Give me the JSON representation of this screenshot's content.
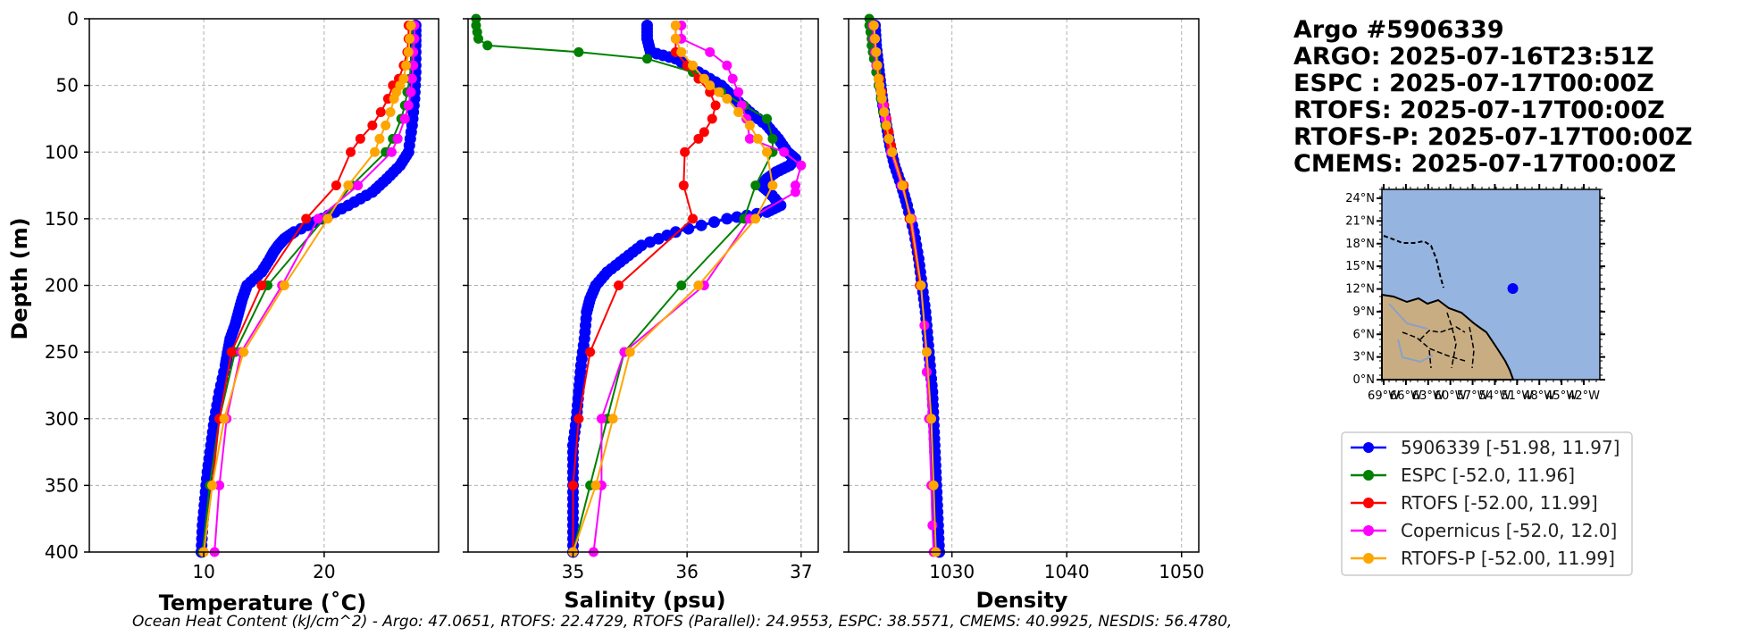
{
  "title": {
    "lines": [
      "Argo #5906339",
      "ARGO: 2025-07-16T23:51Z",
      "ESPC : 2025-07-17T00:00Z",
      "RTOFS: 2025-07-17T00:00Z",
      "RTOFS-P: 2025-07-17T00:00Z",
      "CMEMS: 2025-07-17T00:00Z"
    ]
  },
  "footer": {
    "ohc_text": "Ocean Heat Content (kJ/cm^2) - Argo: 47.0651,  RTOFS: 22.4729,  RTOFS (Parallel): 24.9553,  ESPC: 38.5571,  CMEMS: 40.9925,  NESDIS: 56.4780,"
  },
  "colors": {
    "argo": "#0000ff",
    "espc": "#008000",
    "rtofs": "#ff0000",
    "copernicus": "#ff00ff",
    "rtofs_p": "#ffa500",
    "ocean": "#96b4e0",
    "land": "#c9ad82"
  },
  "legend": [
    {
      "key": "argo",
      "label": "5906339 [-51.98, 11.97]"
    },
    {
      "key": "espc",
      "label": "ESPC [-52.0, 11.96]"
    },
    {
      "key": "rtofs",
      "label": "RTOFS [-52.00, 11.99]"
    },
    {
      "key": "copernicus",
      "label": "Copernicus [-52.0, 12.0]"
    },
    {
      "key": "rtofs_p",
      "label": "RTOFS-P [-52.00, 11.99]"
    }
  ],
  "chart_data": [
    {
      "type": "line",
      "title": "",
      "xlabel": "Temperature (˚C)",
      "ylabel": "Depth (m)",
      "xlim": [
        0.5,
        29.5
      ],
      "ylim": [
        400,
        0
      ],
      "xticks": [
        10,
        20
      ],
      "yticks": [
        0,
        50,
        100,
        150,
        200,
        250,
        300,
        350,
        400
      ],
      "grid": true,
      "series": [
        {
          "key": "argo",
          "dense": true,
          "name": "5906339",
          "depth": [
            5,
            20,
            40,
            60,
            80,
            100,
            110,
            120,
            130,
            140,
            150,
            160,
            165,
            170,
            175,
            180,
            190,
            200,
            210,
            220,
            230,
            240,
            250,
            260,
            280,
            300,
            320,
            340,
            360,
            380,
            400
          ],
          "values": [
            27.6,
            27.6,
            27.6,
            27.5,
            27.3,
            27.0,
            26.3,
            25.2,
            24.0,
            22.0,
            19.8,
            17.5,
            16.7,
            16.2,
            15.8,
            15.5,
            14.8,
            13.6,
            13.2,
            12.9,
            12.6,
            12.2,
            12.0,
            11.8,
            11.3,
            10.9,
            10.6,
            10.3,
            10.1,
            9.9,
            9.8
          ]
        },
        {
          "key": "espc",
          "name": "ESPC",
          "depth": [
            5,
            15,
            25,
            35,
            45,
            55,
            65,
            75,
            90,
            100,
            125,
            150,
            200,
            250,
            300,
            350,
            400
          ],
          "values": [
            27.3,
            27.3,
            27.3,
            27.2,
            27.1,
            26.9,
            26.7,
            26.4,
            25.7,
            25.1,
            22.3,
            20.0,
            15.3,
            12.6,
            11.3,
            10.5,
            9.9
          ]
        },
        {
          "key": "rtofs",
          "name": "RTOFS",
          "depth": [
            5,
            15,
            25,
            35,
            45,
            50,
            60,
            70,
            80,
            90,
            100,
            125,
            150,
            200,
            250,
            300,
            350,
            400
          ],
          "values": [
            27.0,
            27.0,
            26.9,
            26.6,
            26.2,
            25.7,
            25.3,
            24.7,
            24.0,
            23.0,
            22.2,
            21.0,
            18.5,
            14.8,
            12.3,
            11.3,
            10.7,
            10.0
          ]
        },
        {
          "key": "copernicus",
          "name": "Copernicus",
          "depth": [
            5,
            15,
            25,
            35,
            45,
            55,
            65,
            75,
            90,
            100,
            125,
            150,
            200,
            250,
            300,
            350,
            400
          ],
          "values": [
            27.5,
            27.5,
            27.4,
            27.4,
            27.3,
            27.2,
            27.0,
            26.7,
            26.1,
            25.6,
            22.8,
            19.5,
            16.5,
            13.1,
            11.9,
            11.3,
            10.9
          ]
        },
        {
          "key": "rtofs_p",
          "name": "RTOFS-P",
          "depth": [
            5,
            15,
            25,
            35,
            45,
            50,
            55,
            60,
            70,
            80,
            90,
            100,
            125,
            150,
            200,
            250,
            300,
            350,
            400
          ],
          "values": [
            27.2,
            27.1,
            27.0,
            26.8,
            26.6,
            26.3,
            26.0,
            25.8,
            25.5,
            25.1,
            24.6,
            24.2,
            22.0,
            20.3,
            16.7,
            13.3,
            11.7,
            10.7,
            10.0
          ]
        }
      ]
    },
    {
      "type": "line",
      "title": "",
      "xlabel": "Salinity (psu)",
      "ylabel": "",
      "xlim": [
        34.08,
        37.15
      ],
      "ylim": [
        400,
        0
      ],
      "xticks": [
        35,
        36,
        37
      ],
      "yticks": [
        0,
        50,
        100,
        150,
        200,
        250,
        300,
        350,
        400
      ],
      "grid": true,
      "series": [
        {
          "key": "argo",
          "dense": true,
          "name": "5906339",
          "depth": [
            5,
            15,
            25,
            30,
            40,
            50,
            60,
            70,
            80,
            90,
            100,
            105,
            110,
            115,
            120,
            125,
            130,
            140,
            145,
            150,
            160,
            170,
            180,
            190,
            200,
            210,
            220,
            240,
            260,
            280,
            300,
            320,
            340,
            360,
            380,
            400
          ],
          "values": [
            35.65,
            35.65,
            35.68,
            35.9,
            36.1,
            36.3,
            36.42,
            36.55,
            36.7,
            36.8,
            36.88,
            36.95,
            36.9,
            36.78,
            36.7,
            36.65,
            36.72,
            36.82,
            36.7,
            36.35,
            35.9,
            35.6,
            35.45,
            35.3,
            35.2,
            35.15,
            35.12,
            35.1,
            35.07,
            35.05,
            35.03,
            35.0,
            35.0,
            35.0,
            35.0,
            35.0
          ]
        },
        {
          "key": "espc",
          "name": "ESPC",
          "depth": [
            0,
            5,
            10,
            15,
            20,
            25,
            30,
            40,
            55,
            65,
            75,
            90,
            100,
            125,
            150,
            200,
            250,
            300,
            350,
            400
          ],
          "values": [
            34.15,
            34.15,
            34.16,
            34.17,
            34.25,
            35.05,
            35.65,
            36.05,
            36.3,
            36.5,
            36.7,
            36.75,
            36.75,
            36.6,
            36.5,
            35.95,
            35.45,
            35.3,
            35.15,
            35.0
          ]
        },
        {
          "key": "rtofs",
          "name": "RTOFS",
          "depth": [
            5,
            15,
            25,
            35,
            45,
            55,
            65,
            75,
            85,
            90,
            100,
            125,
            150,
            200,
            250,
            300,
            350,
            400
          ],
          "values": [
            35.9,
            35.9,
            35.9,
            36.0,
            36.1,
            36.2,
            36.25,
            36.22,
            36.15,
            36.1,
            35.98,
            35.97,
            36.05,
            35.4,
            35.15,
            35.05,
            35.0,
            35.0
          ]
        },
        {
          "key": "copernicus",
          "name": "Copernicus",
          "depth": [
            5,
            15,
            25,
            35,
            45,
            55,
            65,
            75,
            90,
            100,
            110,
            125,
            130,
            150,
            200,
            250,
            300,
            350,
            400
          ],
          "values": [
            35.95,
            35.95,
            36.2,
            36.35,
            36.4,
            36.45,
            36.48,
            36.52,
            36.55,
            36.85,
            37.0,
            36.95,
            36.95,
            36.55,
            36.15,
            35.45,
            35.25,
            35.25,
            35.18
          ]
        },
        {
          "key": "rtofs_p",
          "name": "RTOFS-P",
          "depth": [
            5,
            15,
            25,
            35,
            45,
            50,
            55,
            60,
            70,
            80,
            90,
            100,
            125,
            150,
            200,
            250,
            300,
            350,
            400
          ],
          "values": [
            35.9,
            35.9,
            35.95,
            36.05,
            36.15,
            36.2,
            36.28,
            36.35,
            36.45,
            36.55,
            36.62,
            36.7,
            36.75,
            36.6,
            36.1,
            35.5,
            35.35,
            35.2,
            35.0
          ]
        }
      ]
    },
    {
      "type": "line",
      "title": "",
      "xlabel": "Density",
      "ylabel": "",
      "xlim": [
        1021.0,
        1051.5
      ],
      "ylim": [
        400,
        0
      ],
      "xticks": [
        1030,
        1040,
        1050
      ],
      "yticks": [
        0,
        50,
        100,
        150,
        200,
        250,
        300,
        350,
        400
      ],
      "grid": true,
      "series": [
        {
          "key": "argo",
          "dense": true,
          "name": "5906339",
          "depth": [
            5,
            20,
            35,
            50,
            65,
            80,
            95,
            110,
            125,
            140,
            160,
            180,
            200,
            220,
            240,
            260,
            280,
            300,
            320,
            340,
            360,
            380,
            400
          ],
          "values": [
            1023.3,
            1023.4,
            1023.6,
            1023.8,
            1024.0,
            1024.3,
            1024.6,
            1025.0,
            1025.6,
            1026.1,
            1026.7,
            1027.1,
            1027.4,
            1027.7,
            1027.9,
            1028.1,
            1028.3,
            1028.4,
            1028.5,
            1028.6,
            1028.7,
            1028.8,
            1028.9
          ]
        },
        {
          "key": "espc",
          "name": "ESPC",
          "depth": [
            0,
            5,
            10,
            15,
            20,
            25,
            30,
            40,
            50,
            60,
            70,
            80,
            90,
            100
          ],
          "values": [
            1022.8,
            1022.8,
            1022.9,
            1023.0,
            1023.0,
            1023.1,
            1023.2,
            1023.4,
            1023.6,
            1023.8,
            1024.0,
            1024.2,
            1024.5,
            1024.7
          ]
        },
        {
          "key": "rtofs",
          "name": "RTOFS",
          "depth": [
            5,
            15,
            25,
            35,
            45,
            55,
            65,
            75,
            85,
            95,
            125,
            150,
            200
          ],
          "values": [
            1023.2,
            1023.2,
            1023.3,
            1023.5,
            1023.7,
            1023.9,
            1024.1,
            1024.3,
            1024.5,
            1024.7,
            1025.8,
            1026.3,
            1027.2
          ]
        },
        {
          "key": "copernicus",
          "name": "Copernicus",
          "depth": [
            5,
            15,
            25,
            35,
            45,
            55,
            65,
            75,
            90,
            100,
            125,
            150,
            200,
            230,
            265,
            300,
            350,
            380,
            400
          ],
          "values": [
            1023.1,
            1023.2,
            1023.3,
            1023.4,
            1023.6,
            1023.8,
            1024.0,
            1024.2,
            1024.5,
            1024.7,
            1025.6,
            1026.5,
            1027.3,
            1027.6,
            1027.8,
            1028.0,
            1028.2,
            1028.3,
            1028.4
          ]
        },
        {
          "key": "rtofs_p",
          "name": "RTOFS-P",
          "depth": [
            5,
            15,
            25,
            35,
            45,
            50,
            55,
            60,
            70,
            80,
            90,
            100,
            125,
            150,
            200,
            250,
            300,
            350,
            400
          ],
          "values": [
            1023.2,
            1023.3,
            1023.4,
            1023.5,
            1023.6,
            1023.7,
            1023.8,
            1023.9,
            1024.1,
            1024.3,
            1024.5,
            1024.8,
            1025.7,
            1026.4,
            1027.3,
            1027.8,
            1028.2,
            1028.4,
            1028.6
          ]
        }
      ]
    }
  ],
  "map": {
    "lat_ticks": [
      "24°N",
      "21°N",
      "18°N",
      "15°N",
      "12°N",
      "9°N",
      "6°N",
      "3°N",
      "0°N"
    ],
    "lon_ticks": [
      "69°W",
      "66°W",
      "63°W",
      "60°W",
      "57°W",
      "54°W",
      "51°W",
      "48°W",
      "45°W",
      "42°W"
    ],
    "lon_range": [
      -70,
      -40
    ],
    "lat_range": [
      0,
      25
    ],
    "float_position": [
      -51.98,
      11.97
    ]
  }
}
